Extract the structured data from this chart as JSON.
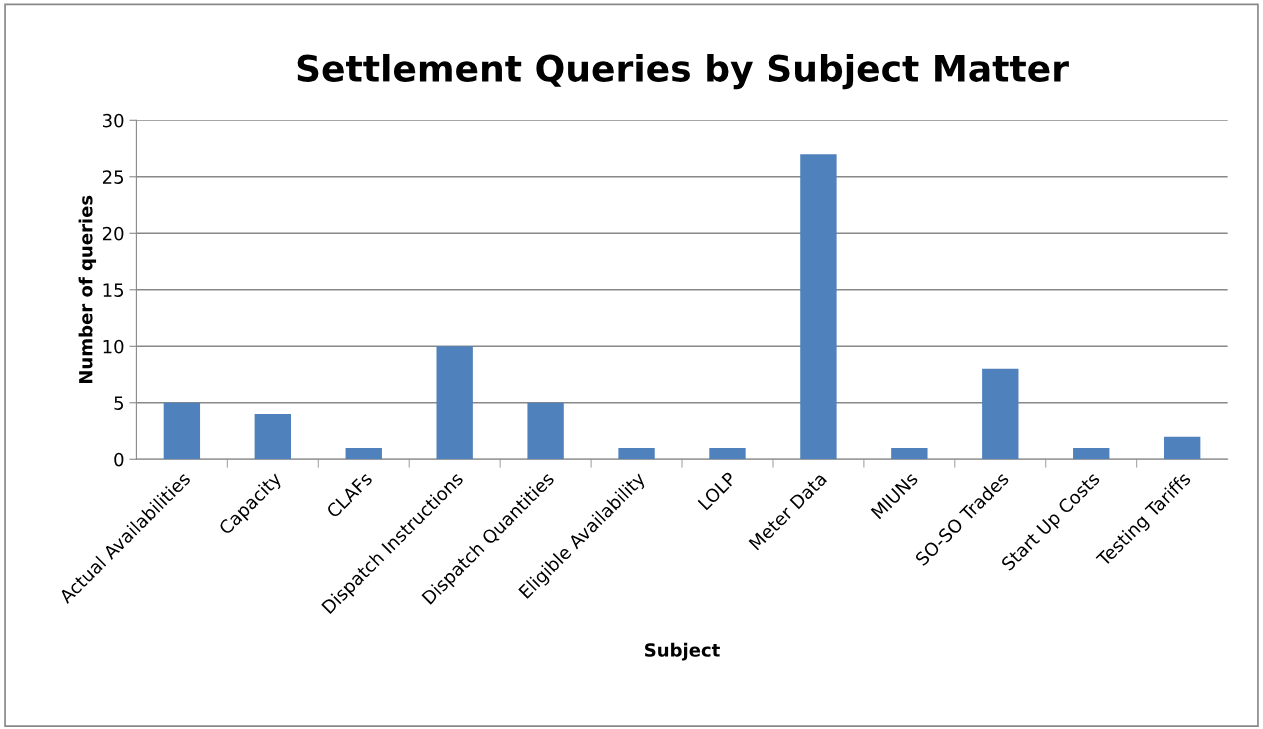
{
  "chart_data": {
    "type": "bar",
    "title": "Settlement Queries by Subject Matter",
    "xlabel": "Subject",
    "ylabel": "Number of queries",
    "categories": [
      "Actual Availabilities",
      "Capacity",
      "CLAFs",
      "Dispatch Instructions",
      "Dispatch Quantities",
      "Eligible Availability",
      "LOLP",
      "Meter Data",
      "MIUNs",
      "SO-SO Trades",
      "Start Up Costs",
      "Testing Tariffs"
    ],
    "values": [
      5,
      4,
      1,
      10,
      5,
      1,
      1,
      27,
      1,
      8,
      1,
      2
    ],
    "color": "#4f81bd",
    "ylim": [
      0,
      30
    ],
    "yticks": [
      0,
      5,
      10,
      15,
      20,
      25,
      30
    ],
    "grid": "y",
    "legend": false
  }
}
